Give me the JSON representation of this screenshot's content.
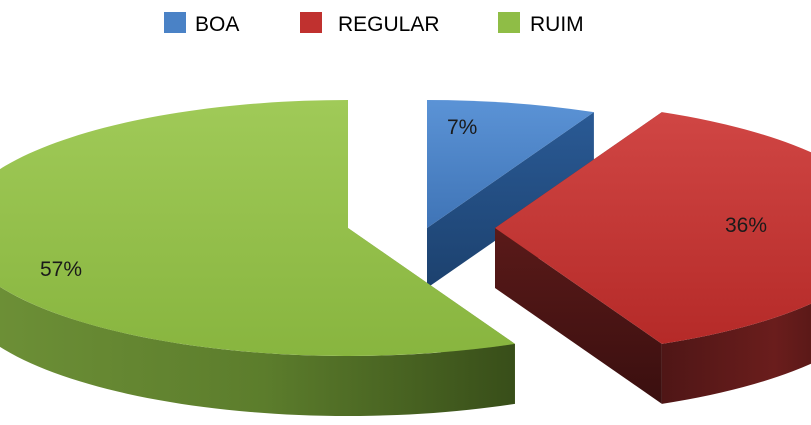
{
  "chart_data": {
    "type": "pie",
    "style": "3d-exploded",
    "legend_position": "top-center",
    "title": "",
    "slices": [
      {
        "label": "BOA",
        "value": 7,
        "data_label": "7%",
        "color": "#4a82c6"
      },
      {
        "label": "REGULAR",
        "value": 36,
        "data_label": "36%",
        "color": "#c0312f"
      },
      {
        "label": "RUIM",
        "value": 57,
        "data_label": "57%",
        "color": "#8fbd46"
      }
    ]
  }
}
